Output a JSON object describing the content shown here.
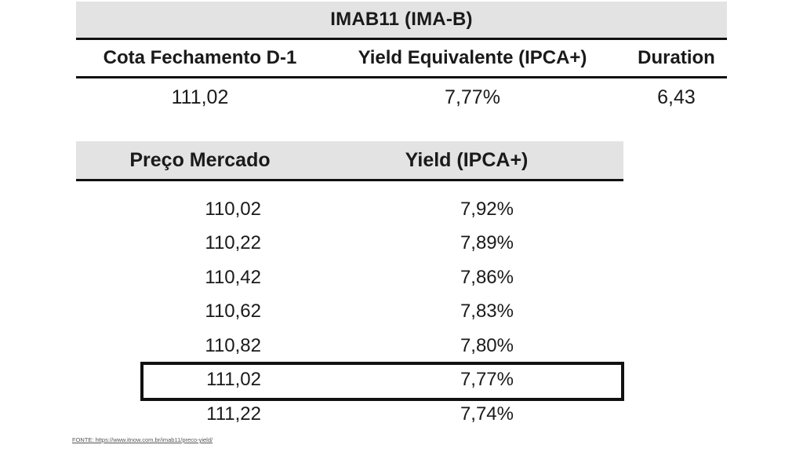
{
  "top_table": {
    "title": "IMAB11 (IMA-B)",
    "headers": [
      "Cota Fechamento D-1",
      "Yield Equivalente (IPCA+)",
      "Duration"
    ],
    "values": [
      "111,02",
      "7,77%",
      "6,43"
    ]
  },
  "price_table": {
    "headers": [
      "Preço Mercado",
      "Yield (IPCA+)"
    ],
    "rows": [
      {
        "price": "110,02",
        "yield": "7,92%"
      },
      {
        "price": "110,22",
        "yield": "7,89%"
      },
      {
        "price": "110,42",
        "yield": "7,86%"
      },
      {
        "price": "110,62",
        "yield": "7,83%"
      },
      {
        "price": "110,82",
        "yield": "7,80%"
      },
      {
        "price": "111,02",
        "yield": "7,77%"
      },
      {
        "price": "111,22",
        "yield": "7,74%"
      }
    ],
    "highlighted_row": 5
  },
  "source": "FONTE: https://www.itnow.com.br/imab11/preco-yield/"
}
